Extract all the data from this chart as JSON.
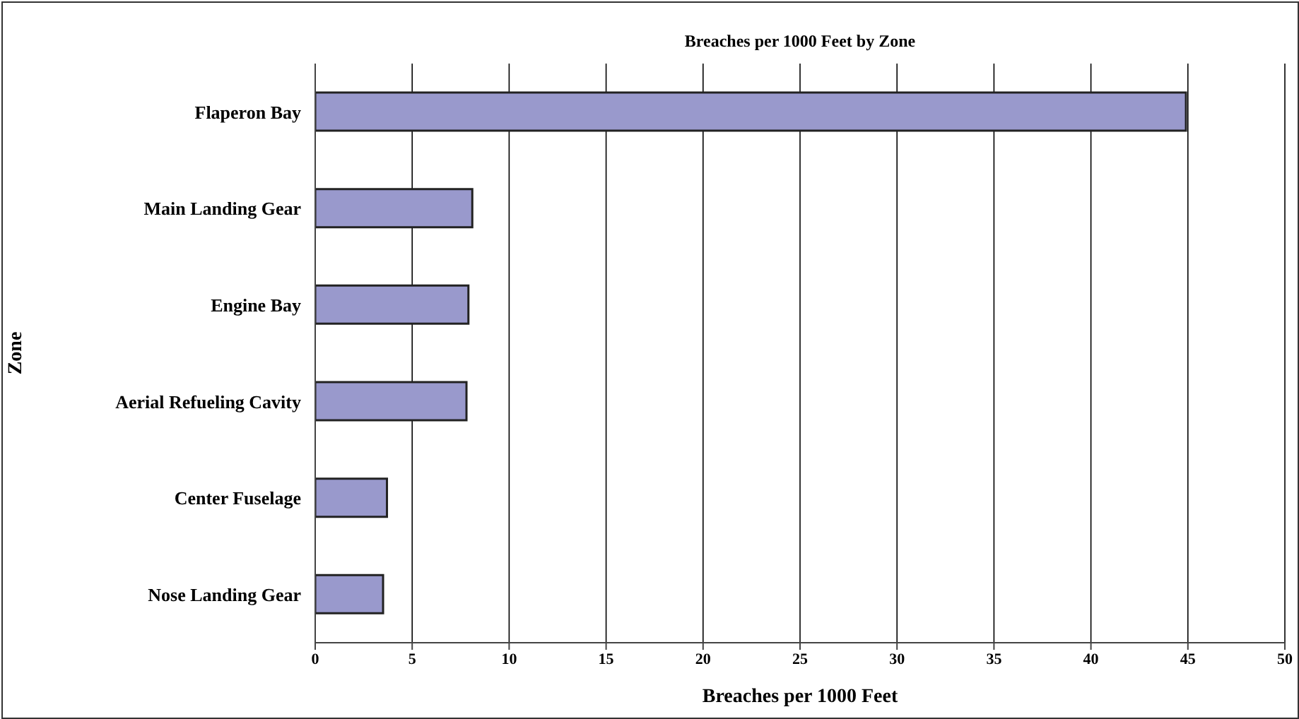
{
  "chart_data": {
    "type": "bar",
    "orientation": "horizontal",
    "title": "Breaches per 1000 Feet by Zone",
    "xlabel": "Breaches per 1000 Feet",
    "ylabel": "Zone",
    "categories": [
      "Flaperon Bay",
      "Main Landing Gear",
      "Engine Bay",
      "Aerial Refueling Cavity",
      "Center Fuselage",
      "Nose Landing Gear"
    ],
    "values": [
      44.9,
      8.1,
      7.9,
      7.8,
      3.7,
      3.5
    ],
    "color": "#9999cc",
    "xlim": [
      0,
      50
    ],
    "xticks": [
      0,
      5,
      10,
      15,
      20,
      25,
      30,
      35,
      40,
      45,
      50
    ],
    "grid": "x",
    "legend": false
  }
}
